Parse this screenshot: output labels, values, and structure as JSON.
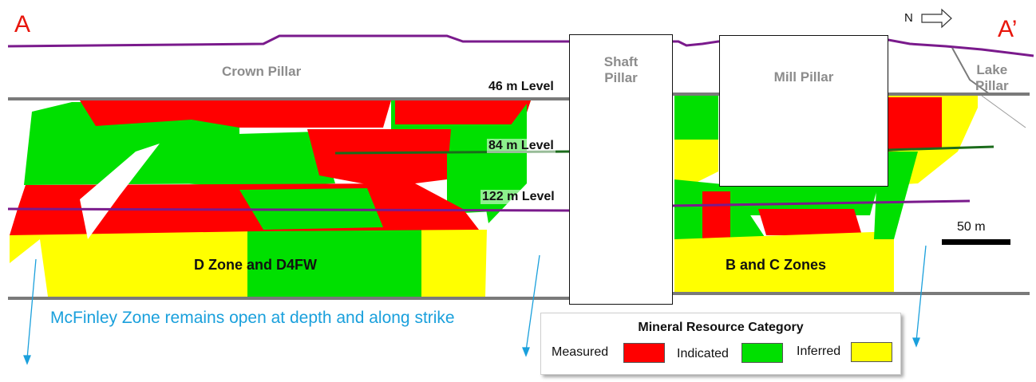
{
  "section": {
    "label_left": "A",
    "label_right": "A’",
    "north_label": "N",
    "scale_label": "50 m"
  },
  "pillars": {
    "crown": "Crown Pillar",
    "shaft_line1": "Shaft",
    "shaft_line2": "Pillar",
    "mill": "Mill Pillar",
    "lake_line1": "Lake",
    "lake_line2": "Pillar"
  },
  "levels": [
    "46 m Level",
    "84 m Level",
    "122 m Level"
  ],
  "zones": {
    "left": "D Zone and D4FW",
    "right": "B and C Zones"
  },
  "note": "McFinley Zone remains open at depth and along strike",
  "legend": {
    "title": "Mineral Resource Category",
    "items": [
      {
        "label": "Measured",
        "color": "#ff0000"
      },
      {
        "label": "Indicated",
        "color": "#00e000"
      },
      {
        "label": "Inferred",
        "color": "#ffff00"
      }
    ]
  },
  "colors": {
    "measured": "#ff0000",
    "indicated": "#00e000",
    "inferred": "#ffff00",
    "surface_line": "#7a1a8c",
    "level_line": "#7a7a7a",
    "arrow": "#1aa0dc",
    "label_red": "#e8160c"
  }
}
